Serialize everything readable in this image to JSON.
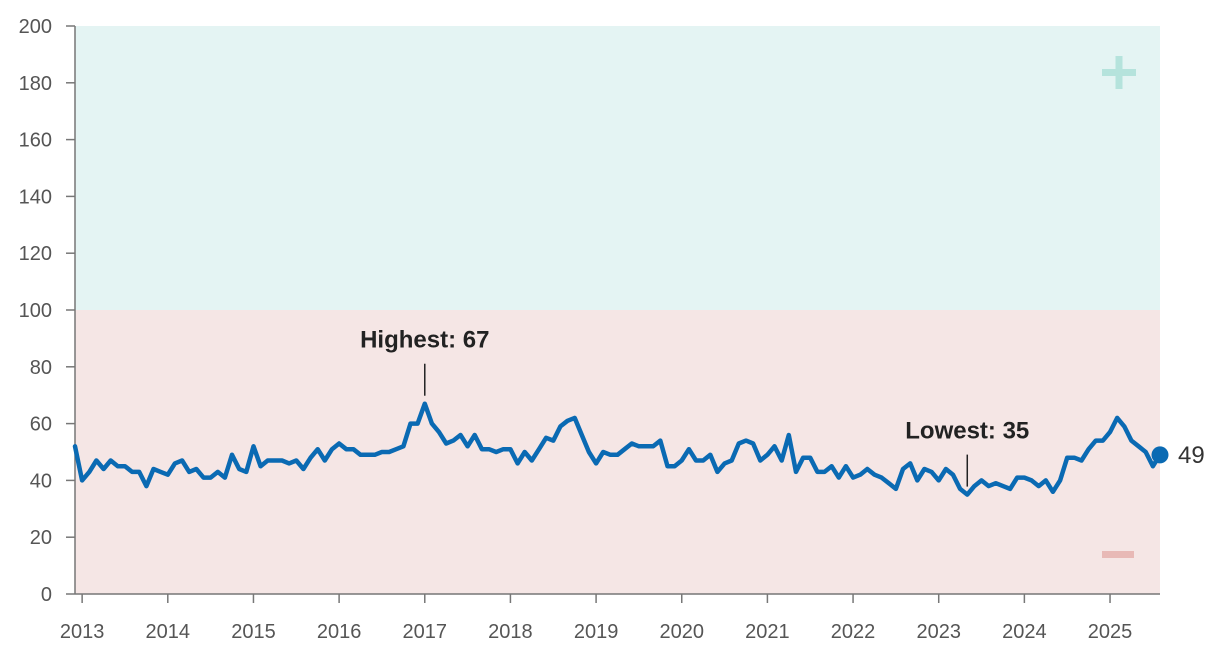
{
  "chart_data": {
    "type": "line",
    "title": "",
    "xlabel": "",
    "ylabel": "",
    "ylim": [
      0,
      200
    ],
    "y_ticks": [
      "0",
      "20",
      "40",
      "60",
      "80",
      "100",
      "120",
      "140",
      "160",
      "180",
      "200"
    ],
    "x_ticks": [
      "2013",
      "2014",
      "2015",
      "2016",
      "2017",
      "2018",
      "2019",
      "2020",
      "2021",
      "2022",
      "2023",
      "2024",
      "2025"
    ],
    "x_range": [
      "2012-12",
      "2025-08"
    ],
    "grid": false,
    "zones": [
      {
        "from": 100,
        "to": 200,
        "symbol": "+",
        "color": "#e4f4f3"
      },
      {
        "from": 0,
        "to": 100,
        "symbol": "−",
        "color": "#f5e6e5"
      }
    ],
    "line_color": "#0a6ab3",
    "series": [
      {
        "x": [
          "2012-12",
          "2013-01",
          "2013-02",
          "2013-03",
          "2013-04",
          "2013-05",
          "2013-06",
          "2013-07",
          "2013-08",
          "2013-09",
          "2013-10",
          "2013-11",
          "2013-12",
          "2014-01",
          "2014-02",
          "2014-03",
          "2014-04",
          "2014-05",
          "2014-06",
          "2014-07",
          "2014-08",
          "2014-09",
          "2014-10",
          "2014-11",
          "2014-12",
          "2015-01",
          "2015-02",
          "2015-03",
          "2015-04",
          "2015-05",
          "2015-06",
          "2015-07",
          "2015-08",
          "2015-09",
          "2015-10",
          "2015-11",
          "2015-12",
          "2016-01",
          "2016-02",
          "2016-03",
          "2016-04",
          "2016-05",
          "2016-06",
          "2016-07",
          "2016-08",
          "2016-09",
          "2016-10",
          "2016-11",
          "2016-12",
          "2017-01",
          "2017-02",
          "2017-03",
          "2017-04",
          "2017-05",
          "2017-06",
          "2017-07",
          "2017-08",
          "2017-09",
          "2017-10",
          "2017-11",
          "2017-12",
          "2018-01",
          "2018-02",
          "2018-03",
          "2018-04",
          "2018-05",
          "2018-06",
          "2018-07",
          "2018-08",
          "2018-09",
          "2018-10",
          "2018-11",
          "2018-12",
          "2019-01",
          "2019-02",
          "2019-03",
          "2019-04",
          "2019-05",
          "2019-06",
          "2019-07",
          "2019-08",
          "2019-09",
          "2019-10",
          "2019-11",
          "2019-12",
          "2020-01",
          "2020-02",
          "2020-03",
          "2020-04",
          "2020-05",
          "2020-06",
          "2020-07",
          "2020-08",
          "2020-09",
          "2020-10",
          "2020-11",
          "2020-12",
          "2021-01",
          "2021-02",
          "2021-03",
          "2021-04",
          "2021-05",
          "2021-06",
          "2021-07",
          "2021-08",
          "2021-09",
          "2021-10",
          "2021-11",
          "2021-12",
          "2022-01",
          "2022-02",
          "2022-03",
          "2022-04",
          "2022-05",
          "2022-06",
          "2022-07",
          "2022-08",
          "2022-09",
          "2022-10",
          "2022-11",
          "2022-12",
          "2023-01",
          "2023-02",
          "2023-03",
          "2023-04",
          "2023-05",
          "2023-06",
          "2023-07",
          "2023-08",
          "2023-09",
          "2023-10",
          "2023-11",
          "2023-12",
          "2024-01",
          "2024-02",
          "2024-03",
          "2024-04",
          "2024-05",
          "2024-06",
          "2024-07",
          "2024-08",
          "2024-09",
          "2024-10",
          "2024-11",
          "2024-12",
          "2025-01",
          "2025-02",
          "2025-03",
          "2025-04",
          "2025-05",
          "2025-06",
          "2025-07",
          "2025-08"
        ],
        "values": [
          52,
          40,
          43,
          47,
          44,
          47,
          45,
          45,
          43,
          43,
          38,
          44,
          43,
          42,
          46,
          47,
          43,
          44,
          41,
          41,
          43,
          41,
          49,
          44,
          43,
          52,
          45,
          47,
          47,
          47,
          46,
          47,
          44,
          48,
          51,
          47,
          51,
          53,
          51,
          51,
          49,
          49,
          49,
          50,
          50,
          51,
          52,
          60,
          60,
          67,
          60,
          57,
          53,
          54,
          56,
          52,
          56,
          51,
          51,
          50,
          51,
          51,
          46,
          50,
          47,
          51,
          55,
          54,
          59,
          61,
          62,
          56,
          50,
          46,
          50,
          49,
          49,
          51,
          53,
          52,
          52,
          52,
          54,
          45,
          45,
          47,
          51,
          47,
          47,
          49,
          43,
          46,
          47,
          53,
          54,
          53,
          47,
          49,
          52,
          47,
          56,
          43,
          48,
          48,
          43,
          43,
          45,
          41,
          45,
          41,
          42,
          44,
          42,
          41,
          39,
          37,
          44,
          46,
          40,
          44,
          43,
          40,
          44,
          42,
          37,
          35,
          38,
          40,
          38,
          39,
          38,
          37,
          41,
          41,
          40,
          38,
          40,
          36,
          40,
          48,
          48,
          47,
          51,
          54,
          54,
          57,
          62,
          59,
          54,
          52,
          50,
          45,
          49
        ]
      }
    ],
    "annotations": [
      {
        "label": "Highest: 67",
        "x": "2017-01",
        "y": 67
      },
      {
        "label": "Lowest: 35",
        "x": "2023-05",
        "y": 35
      }
    ],
    "end_label": "49"
  }
}
